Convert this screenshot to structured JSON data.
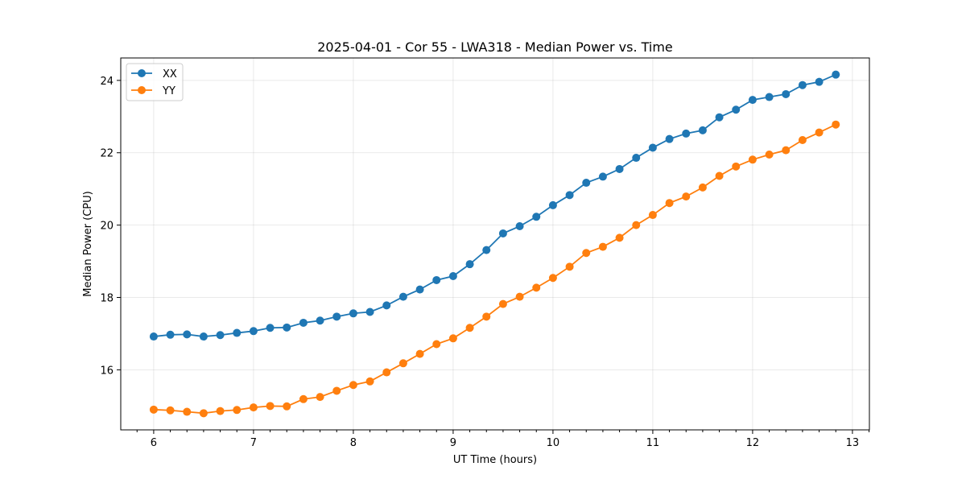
{
  "chart_data": {
    "type": "line",
    "title": "2025-04-01 - Cor 55 - LWA318 - Median Power vs. Time",
    "xlabel": "UT Time (hours)",
    "ylabel": "Median Power (CPU)",
    "xlim": [
      5.67,
      13.17
    ],
    "ylim": [
      14.34,
      24.62
    ],
    "xticks": [
      6,
      7,
      8,
      9,
      10,
      11,
      12,
      13
    ],
    "xtick_labels": [
      "6",
      "7",
      "8",
      "9",
      "10",
      "11",
      "12",
      "13"
    ],
    "yticks": [
      16,
      18,
      20,
      22,
      24
    ],
    "ytick_labels": [
      "16",
      "18",
      "20",
      "22",
      "24"
    ],
    "grid": true,
    "legend_position": "top-left",
    "x": [
      6.0,
      6.1667,
      6.3333,
      6.5,
      6.6667,
      6.8333,
      7.0,
      7.1667,
      7.3333,
      7.5,
      7.6667,
      7.8333,
      8.0,
      8.1667,
      8.3333,
      8.5,
      8.6667,
      8.8333,
      9.0,
      9.1667,
      9.3333,
      9.5,
      9.6667,
      9.8333,
      10.0,
      10.1667,
      10.3333,
      10.5,
      10.6667,
      10.8333,
      11.0,
      11.1667,
      11.3333,
      11.5,
      11.6667,
      11.8333,
      12.0,
      12.1667,
      12.3333,
      12.5,
      12.6667,
      12.8333
    ],
    "series": [
      {
        "name": "XX",
        "color": "#1f77b4",
        "values": [
          16.92,
          16.97,
          16.98,
          16.92,
          16.96,
          17.02,
          17.07,
          17.16,
          17.17,
          17.3,
          17.36,
          17.47,
          17.56,
          17.6,
          17.78,
          18.02,
          18.22,
          18.48,
          18.59,
          18.92,
          19.31,
          19.77,
          19.97,
          20.23,
          20.55,
          20.83,
          21.17,
          21.34,
          21.55,
          21.86,
          22.14,
          22.38,
          22.53,
          22.62,
          22.98,
          23.19,
          23.46,
          23.54,
          23.62,
          23.87,
          23.96,
          24.16
        ]
      },
      {
        "name": "YY",
        "color": "#ff7f0e",
        "values": [
          14.9,
          14.88,
          14.84,
          14.8,
          14.86,
          14.89,
          14.96,
          15.0,
          14.99,
          15.19,
          15.25,
          15.42,
          15.58,
          15.68,
          15.93,
          16.18,
          16.44,
          16.71,
          16.87,
          17.16,
          17.47,
          17.82,
          18.02,
          18.27,
          18.54,
          18.85,
          19.23,
          19.4,
          19.65,
          20.0,
          20.28,
          20.61,
          20.79,
          21.04,
          21.36,
          21.62,
          21.81,
          21.95,
          22.07,
          22.35,
          22.56,
          22.78
        ]
      }
    ]
  }
}
